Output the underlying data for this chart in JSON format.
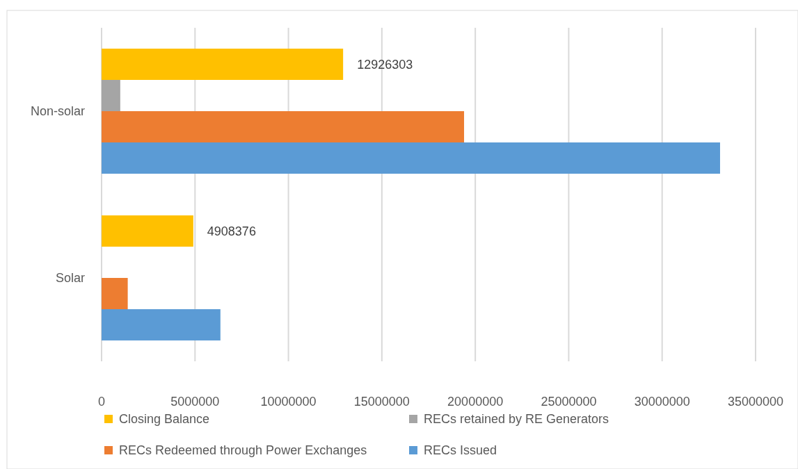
{
  "chart_data": {
    "type": "bar",
    "orientation": "horizontal",
    "categories": [
      "Non-solar",
      "Solar"
    ],
    "series": [
      {
        "name": "Closing Balance",
        "color": "#ffc000",
        "values": [
          12926303,
          4908376
        ],
        "value_labels": [
          "12926303",
          "4908376"
        ]
      },
      {
        "name": "RECs retained by RE Generators",
        "color": "#a5a5a5",
        "values": [
          1000000,
          0
        ]
      },
      {
        "name": "RECs Redeemed through Power Exchanges",
        "color": "#ed7d31",
        "values": [
          19400000,
          1400000
        ]
      },
      {
        "name": "RECs Issued",
        "color": "#5b9bd5",
        "values": [
          33100000,
          6360000
        ]
      }
    ],
    "xlim": [
      0,
      35000000
    ],
    "xticks": [
      0,
      5000000,
      10000000,
      15000000,
      20000000,
      25000000,
      30000000,
      35000000
    ],
    "grid": "x",
    "legend": "bottom"
  }
}
